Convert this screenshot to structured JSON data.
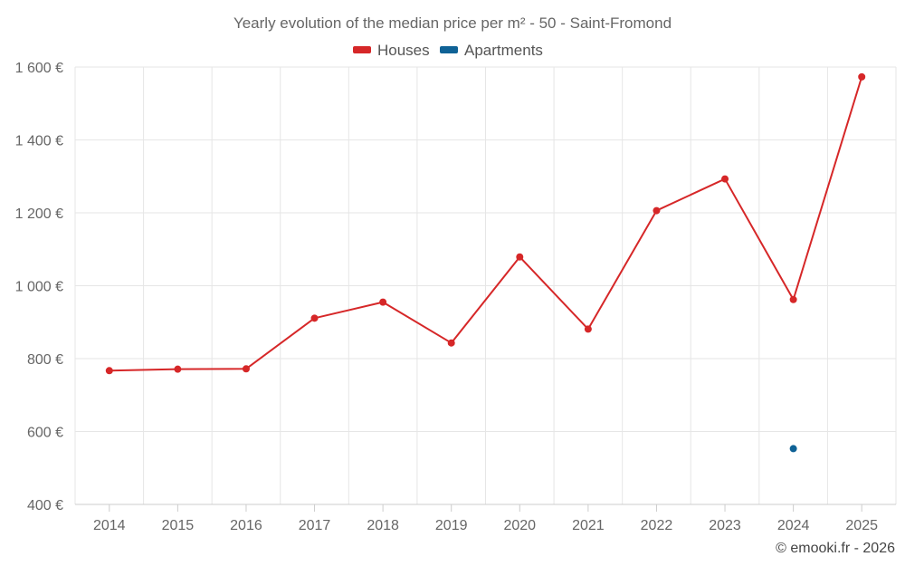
{
  "chart_data": {
    "type": "line",
    "title": "Yearly evolution of the median price per m² - 50 - Saint-Fromond",
    "categories": [
      "2014",
      "2015",
      "2016",
      "2017",
      "2018",
      "2019",
      "2020",
      "2021",
      "2022",
      "2023",
      "2024",
      "2025"
    ],
    "series": [
      {
        "name": "Houses",
        "color": "#d62728",
        "values": [
          767,
          771,
          772,
          911,
          955,
          843,
          1079,
          881,
          1206,
          1293,
          962,
          1573
        ]
      },
      {
        "name": "Apartments",
        "color": "#0f6296",
        "values": [
          null,
          null,
          null,
          null,
          null,
          null,
          null,
          null,
          null,
          null,
          553,
          null
        ]
      }
    ],
    "y_ticks": [
      400,
      600,
      800,
      1000,
      1200,
      1400,
      1600
    ],
    "y_tick_labels": [
      "400 €",
      "600 €",
      "800 €",
      "1 000 €",
      "1 200 €",
      "1 400 €",
      "1 600 €"
    ],
    "ylim": [
      400,
      1600
    ],
    "xlabel": "",
    "ylabel": "",
    "grid": true,
    "legend_position": "top-center"
  },
  "credit": "© emooki.fr - 2026"
}
